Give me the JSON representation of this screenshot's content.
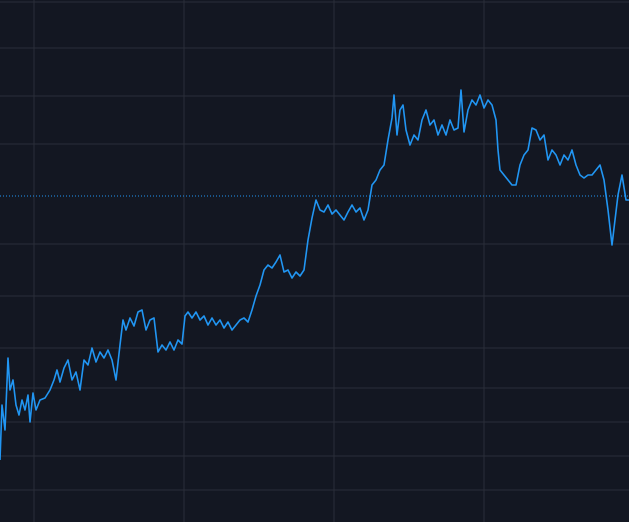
{
  "chart_data": {
    "type": "line",
    "x": [
      0,
      2,
      5,
      8,
      10,
      13,
      16,
      19,
      22,
      25,
      28,
      30,
      33,
      36,
      40,
      45,
      50,
      54,
      57,
      60,
      64,
      68,
      72,
      76,
      80,
      84,
      88,
      92,
      96,
      100,
      104,
      108,
      112,
      116,
      120,
      123,
      126,
      130,
      134,
      138,
      142,
      146,
      150,
      154,
      158,
      162,
      166,
      170,
      174,
      178,
      182,
      185,
      188,
      192,
      196,
      200,
      204,
      208,
      212,
      216,
      220,
      224,
      228,
      232,
      236,
      240,
      244,
      248,
      252,
      256,
      260,
      264,
      268,
      272,
      276,
      280,
      284,
      288,
      292,
      296,
      300,
      304,
      308,
      312,
      316,
      320,
      324,
      328,
      332,
      336,
      340,
      344,
      348,
      352,
      356,
      360,
      364,
      368,
      372,
      376,
      380,
      384,
      388,
      392,
      394,
      397,
      400,
      403,
      406,
      410,
      414,
      418,
      422,
      426,
      430,
      434,
      438,
      442,
      446,
      450,
      454,
      458,
      461,
      464,
      468,
      472,
      476,
      480,
      484,
      488,
      492,
      496,
      498,
      500,
      504,
      508,
      512,
      516,
      520,
      524,
      528,
      532,
      536,
      540,
      544,
      548,
      552,
      556,
      560,
      564,
      568,
      572,
      576,
      580,
      584,
      588,
      592,
      596,
      600,
      604,
      608,
      612,
      615,
      618,
      622,
      626,
      629
    ],
    "values": [
      62,
      117,
      92,
      164,
      132,
      142,
      117,
      107,
      122,
      112,
      127,
      100,
      129,
      112,
      122,
      124,
      132,
      142,
      152,
      140,
      154,
      162,
      142,
      150,
      132,
      162,
      157,
      174,
      160,
      170,
      164,
      172,
      162,
      142,
      177,
      202,
      192,
      204,
      196,
      210,
      212,
      192,
      202,
      204,
      170,
      177,
      172,
      180,
      172,
      182,
      178,
      206,
      210,
      204,
      210,
      202,
      206,
      197,
      204,
      197,
      202,
      194,
      200,
      192,
      197,
      202,
      204,
      200,
      212,
      226,
      237,
      252,
      257,
      254,
      260,
      267,
      250,
      252,
      244,
      250,
      246,
      252,
      282,
      304,
      322,
      312,
      310,
      317,
      308,
      312,
      307,
      302,
      310,
      317,
      310,
      314,
      302,
      312,
      337,
      342,
      352,
      357,
      382,
      404,
      427,
      387,
      412,
      417,
      392,
      377,
      387,
      382,
      402,
      412,
      397,
      402,
      387,
      397,
      387,
      402,
      392,
      394,
      432,
      390,
      412,
      422,
      417,
      427,
      414,
      422,
      417,
      402,
      372,
      352,
      347,
      342,
      337,
      337,
      357,
      367,
      372,
      394,
      392,
      382,
      387,
      362,
      372,
      367,
      357,
      367,
      362,
      372,
      357,
      347,
      344,
      347,
      347,
      352,
      357,
      342,
      312,
      277,
      302,
      327,
      347,
      322,
      322
    ],
    "color": "#2196f3",
    "xlim": [
      0,
      629
    ],
    "ylim": [
      0,
      522
    ],
    "xticks": [
      34,
      184,
      334,
      484
    ],
    "yticks": [
      32,
      66,
      100,
      134,
      174,
      226,
      278,
      378,
      426,
      474,
      520
    ],
    "grid": true,
    "price_line": 326
  }
}
